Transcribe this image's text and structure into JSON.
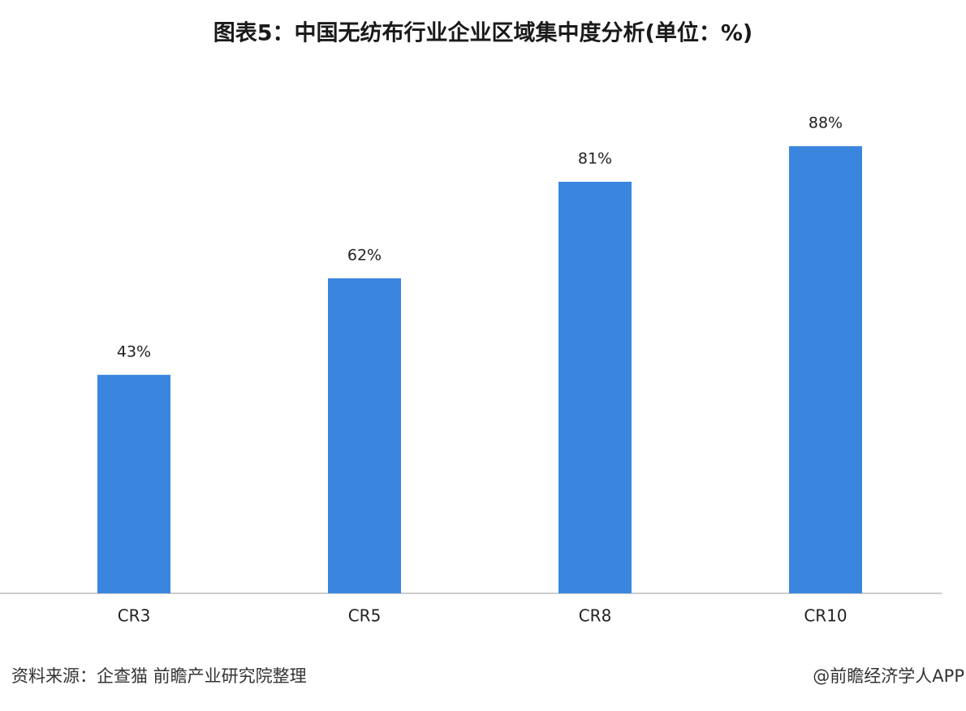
{
  "chart_data": {
    "type": "bar",
    "title": "图表5：中国无纺布行业企业区域集中度分析(单位：%)",
    "categories": [
      "CR3",
      "CR5",
      "CR8",
      "CR10"
    ],
    "values": [
      43,
      62,
      81,
      88
    ],
    "value_labels": [
      "43%",
      "62%",
      "81%",
      "88%"
    ],
    "color": "#3a86df",
    "source": "资料来源：企查猫 前瞻产业研究院整理",
    "credit": "@前瞻经济学人APP"
  }
}
